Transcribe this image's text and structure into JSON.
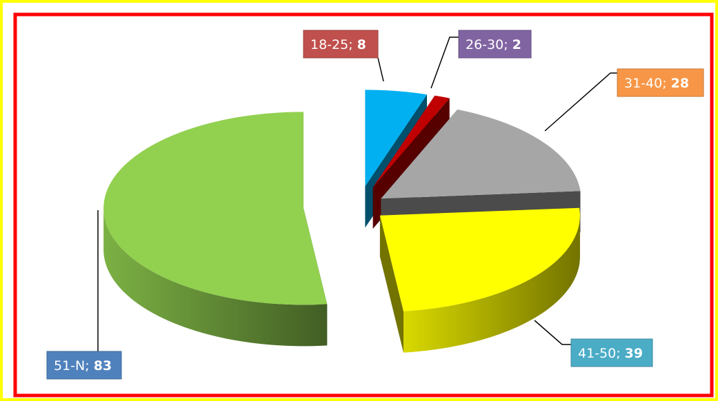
{
  "chart_data": {
    "type": "pie3d",
    "categories": [
      "18-25",
      "26-30",
      "31-40",
      "41-50",
      "51-N"
    ],
    "values": [
      8,
      2,
      28,
      39,
      83
    ],
    "label_separator": "; ",
    "colors": [
      "#00b0f0",
      "#c00000",
      "#a6a6a6",
      "#ffff00",
      "#92d050"
    ],
    "label_colors": [
      "#c0504d",
      "#8064a2",
      "#f79646",
      "#4bacc6",
      "#4f81bd"
    ]
  }
}
